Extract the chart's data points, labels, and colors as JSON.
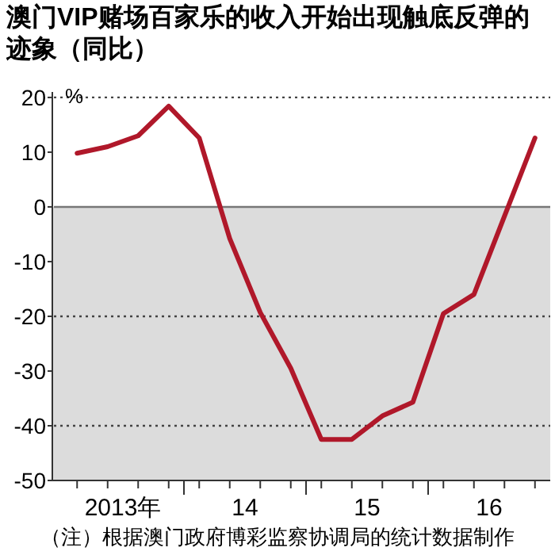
{
  "chart_data": {
    "type": "line",
    "title": "澳门VIP赌场百家乐的收入开始出现触底反弹的迹象（同比）",
    "ylabel": "%",
    "categories": [
      null,
      null,
      null,
      null,
      null,
      null,
      null,
      null,
      null,
      null,
      null,
      null,
      null,
      null,
      null,
      null
    ],
    "series": [
      {
        "color": "#b0182a",
        "values": [
          9.8,
          11,
          13,
          18.4,
          12.6,
          -5.8,
          -19.3,
          -29.5,
          -42.5,
          -42.5,
          -38.2,
          -35.7,
          -19.5,
          -16,
          -1.7,
          12.6
        ]
      }
    ],
    "ylim": [
      -50,
      21
    ],
    "yticks": [
      -50,
      -40,
      -30,
      -20,
      -10,
      0,
      10,
      20
    ],
    "bands": [
      {
        "axis": "y",
        "from": -50,
        "to": 0,
        "color": "#dcdcdc"
      }
    ],
    "ref_lines": [
      {
        "axis": "y",
        "value": 0,
        "color": "#777777",
        "line_style": "solid"
      },
      {
        "axis": "y",
        "value": 20,
        "color": "#444444",
        "line_style": "dotted"
      },
      {
        "axis": "y",
        "value": -20,
        "color": "#444444",
        "line_style": "dotted"
      },
      {
        "axis": "y",
        "value": -40,
        "color": "#444444",
        "line_style": "dotted"
      }
    ],
    "annotations": [
      "2013年",
      "14",
      "15",
      "16",
      "（注）根据澳门政府博彩监察协调局的统计数据制作"
    ]
  }
}
